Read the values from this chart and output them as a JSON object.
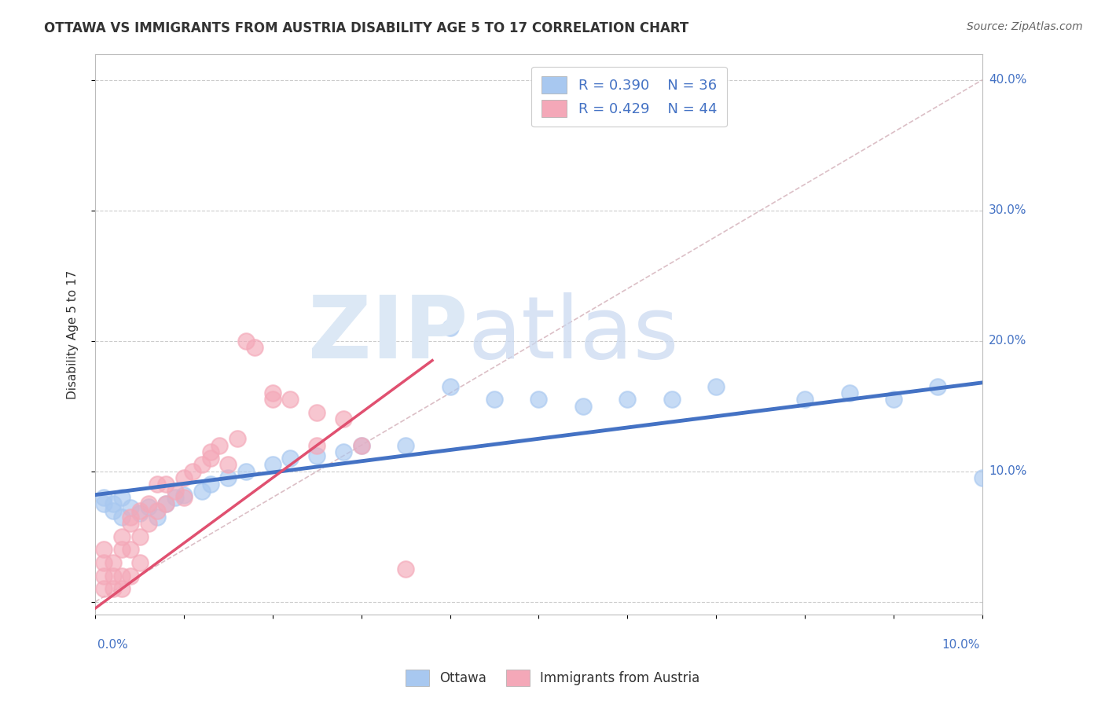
{
  "title": "OTTAWA VS IMMIGRANTS FROM AUSTRIA DISABILITY AGE 5 TO 17 CORRELATION CHART",
  "source": "Source: ZipAtlas.com",
  "ylabel": "Disability Age 5 to 17",
  "ottawa_color": "#A8C8F0",
  "immigrants_color": "#F4A8B8",
  "ottawa_line_color": "#4472C4",
  "immigrants_line_color": "#E05070",
  "diagonal_color": "#D8B8C0",
  "background_color": "#FFFFFF",
  "xlim": [
    0.0,
    0.1
  ],
  "ylim": [
    -0.01,
    0.42
  ],
  "ottawa_x": [
    0.001,
    0.001,
    0.002,
    0.002,
    0.003,
    0.003,
    0.004,
    0.005,
    0.006,
    0.007,
    0.008,
    0.009,
    0.01,
    0.012,
    0.013,
    0.015,
    0.017,
    0.02,
    0.022,
    0.025,
    0.028,
    0.03,
    0.035,
    0.04,
    0.04,
    0.045,
    0.05,
    0.055,
    0.06,
    0.065,
    0.07,
    0.08,
    0.085,
    0.09,
    0.095,
    0.1
  ],
  "ottawa_y": [
    0.075,
    0.08,
    0.07,
    0.075,
    0.065,
    0.08,
    0.072,
    0.068,
    0.073,
    0.065,
    0.075,
    0.08,
    0.082,
    0.085,
    0.09,
    0.095,
    0.1,
    0.105,
    0.11,
    0.112,
    0.115,
    0.12,
    0.12,
    0.21,
    0.165,
    0.155,
    0.155,
    0.15,
    0.155,
    0.155,
    0.165,
    0.155,
    0.16,
    0.155,
    0.165,
    0.095
  ],
  "immigrants_x": [
    0.001,
    0.001,
    0.001,
    0.001,
    0.002,
    0.002,
    0.002,
    0.003,
    0.003,
    0.003,
    0.003,
    0.004,
    0.004,
    0.004,
    0.004,
    0.005,
    0.005,
    0.005,
    0.006,
    0.006,
    0.007,
    0.007,
    0.008,
    0.008,
    0.009,
    0.01,
    0.01,
    0.011,
    0.012,
    0.013,
    0.013,
    0.014,
    0.015,
    0.016,
    0.017,
    0.018,
    0.02,
    0.02,
    0.022,
    0.025,
    0.025,
    0.028,
    0.03,
    0.035
  ],
  "immigrants_y": [
    0.01,
    0.02,
    0.03,
    0.04,
    0.01,
    0.02,
    0.03,
    0.01,
    0.02,
    0.04,
    0.05,
    0.02,
    0.04,
    0.06,
    0.065,
    0.03,
    0.05,
    0.07,
    0.06,
    0.075,
    0.07,
    0.09,
    0.075,
    0.09,
    0.085,
    0.08,
    0.095,
    0.1,
    0.105,
    0.11,
    0.115,
    0.12,
    0.105,
    0.125,
    0.2,
    0.195,
    0.155,
    0.16,
    0.155,
    0.145,
    0.12,
    0.14,
    0.12,
    0.025
  ],
  "ott_line_x": [
    0.0,
    0.1
  ],
  "ott_line_y": [
    0.082,
    0.168
  ],
  "imm_line_x": [
    0.0,
    0.038
  ],
  "imm_line_y": [
    -0.005,
    0.185
  ]
}
